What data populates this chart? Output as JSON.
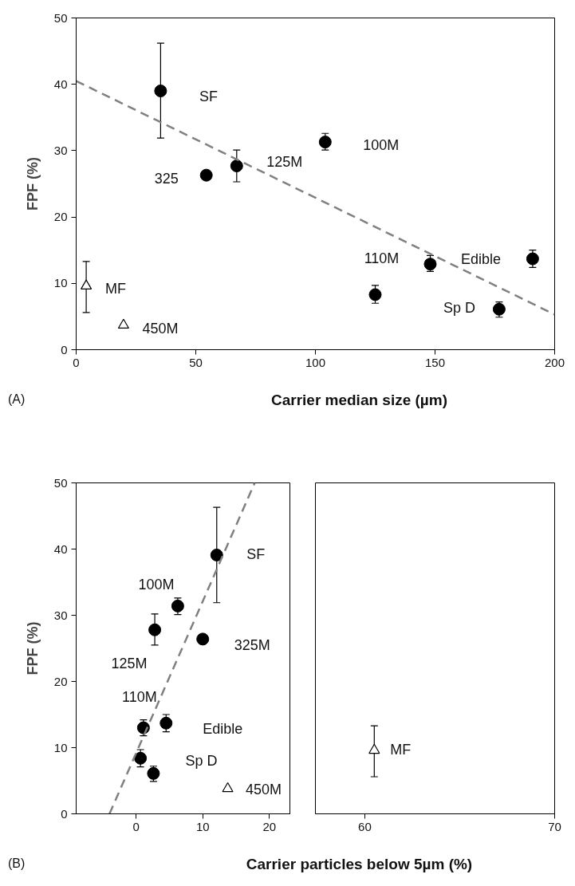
{
  "chart_data": [
    {
      "type": "scatter",
      "xlabel": "Carrier median size (µm)",
      "ylabel": "FPF (%)",
      "xlim": [
        0,
        200
      ],
      "ylim": [
        0,
        50
      ],
      "xticks": [
        0,
        50,
        100,
        150,
        200
      ],
      "yticks": [
        0,
        10,
        20,
        30,
        40,
        50
      ],
      "series": [
        {
          "type": "scatter",
          "marker": "circle",
          "color": "#000000",
          "x": [
            35.3,
            54.4,
            67.1,
            104.1,
            125,
            148,
            176.8,
            190.8
          ],
          "values": [
            39.0,
            26.3,
            27.7,
            31.3,
            8.3,
            12.9,
            6.1,
            13.7
          ],
          "errors": [
            [
              31.9,
              46.2
            ],
            null,
            [
              25.3,
              30.1
            ],
            [
              30.1,
              32.6
            ],
            [
              7.0,
              9.7
            ],
            [
              11.8,
              14.2
            ],
            [
              4.9,
              7.2
            ],
            [
              12.4,
              15.0
            ]
          ]
        },
        {
          "type": "scatter",
          "marker": "triangle",
          "color": "#000000",
          "x": [
            4.2,
            19.8
          ],
          "values": [
            9.6,
            3.7
          ],
          "errors": [
            [
              5.6,
              13.3
            ],
            null
          ]
        },
        {
          "type": "line",
          "line_style": "dashed",
          "color": "#808080",
          "x": [
            0,
            200
          ],
          "values": [
            40.5,
            5.3
          ]
        }
      ],
      "annotations": [
        {
          "text": "SF",
          "x": 35.3,
          "y": 39.0
        },
        {
          "text": "100M",
          "x": 104.1,
          "y": 31.3
        },
        {
          "text": "125M",
          "x": 67.1,
          "y": 27.7
        },
        {
          "text": "325",
          "x": 54.4,
          "y": 26.3
        },
        {
          "text": "110M",
          "x": 148,
          "y": 12.9
        },
        {
          "text": "Edible",
          "x": 190.8,
          "y": 13.7
        },
        {
          "text": "MF",
          "x": 4.2,
          "y": 9.6
        },
        {
          "text": "Sp D",
          "x": 176.8,
          "y": 6.1
        },
        {
          "text": "450M",
          "x": 19.8,
          "y": 3.7
        },
        "(A)"
      ]
    },
    {
      "type": "scatter",
      "xlabel": "Carrier particles below 5µm (%)",
      "ylabel": "FPF (%)",
      "xlim": [
        -9,
        23.2
      ],
      "ylim": [
        0,
        50
      ],
      "xticks": [
        0,
        10,
        20
      ],
      "yticks": [
        0,
        10,
        20,
        30,
        40,
        50
      ],
      "series": [
        {
          "type": "scatter",
          "marker": "circle",
          "color": "#000000",
          "x": [
            12.1,
            6.25,
            2.8,
            10.0,
            1.1,
            4.5,
            0.65,
            2.6
          ],
          "values": [
            39.1,
            31.4,
            27.8,
            26.4,
            13.0,
            13.7,
            8.4,
            6.1
          ],
          "errors": [
            [
              31.9,
              46.3
            ],
            [
              30.1,
              32.6
            ],
            [
              25.5,
              30.2
            ],
            null,
            [
              11.8,
              14.2
            ],
            [
              12.4,
              15.0
            ],
            [
              7.1,
              9.7
            ],
            [
              4.9,
              7.2
            ]
          ]
        },
        {
          "type": "scatter",
          "marker": "triangle",
          "color": "#000000",
          "x": [
            13.75
          ],
          "values": [
            3.8
          ],
          "errors": [
            null
          ]
        },
        {
          "type": "line",
          "line_style": "dashed",
          "color": "#808080",
          "x": [
            -4.0,
            17.8
          ],
          "values": [
            0,
            50
          ]
        }
      ],
      "annotations": [
        {
          "text": "SF",
          "x": 12.1,
          "y": 39.1
        },
        {
          "text": "100M",
          "x": 6.25,
          "y": 31.4
        },
        {
          "text": "125M",
          "x": 2.8,
          "y": 27.8
        },
        {
          "text": "325M",
          "x": 10.0,
          "y": 26.4
        },
        {
          "text": "110M",
          "x": 1.1,
          "y": 13.0
        },
        {
          "text": "Edible",
          "x": 4.5,
          "y": 13.7
        },
        {
          "text": "Sp D",
          "x": 2.6,
          "y": 6.1
        },
        {
          "text": "450M",
          "x": 13.75,
          "y": 3.8
        },
        "(B)"
      ]
    },
    {
      "type": "scatter",
      "xlim": [
        57.4,
        70
      ],
      "ylim": [
        0,
        50
      ],
      "xticks": [
        60,
        70
      ],
      "yticks": [
        0,
        10,
        20,
        30,
        40,
        50
      ],
      "tick_labels": "x",
      "series": [
        {
          "type": "scatter",
          "marker": "triangle",
          "color": "#000000",
          "x": [
            60.5
          ],
          "values": [
            9.6
          ],
          "errors": [
            [
              5.6,
              13.3
            ]
          ]
        }
      ],
      "annotations": [
        {
          "text": "MF",
          "x": 60.5,
          "y": 9.6
        }
      ]
    }
  ]
}
